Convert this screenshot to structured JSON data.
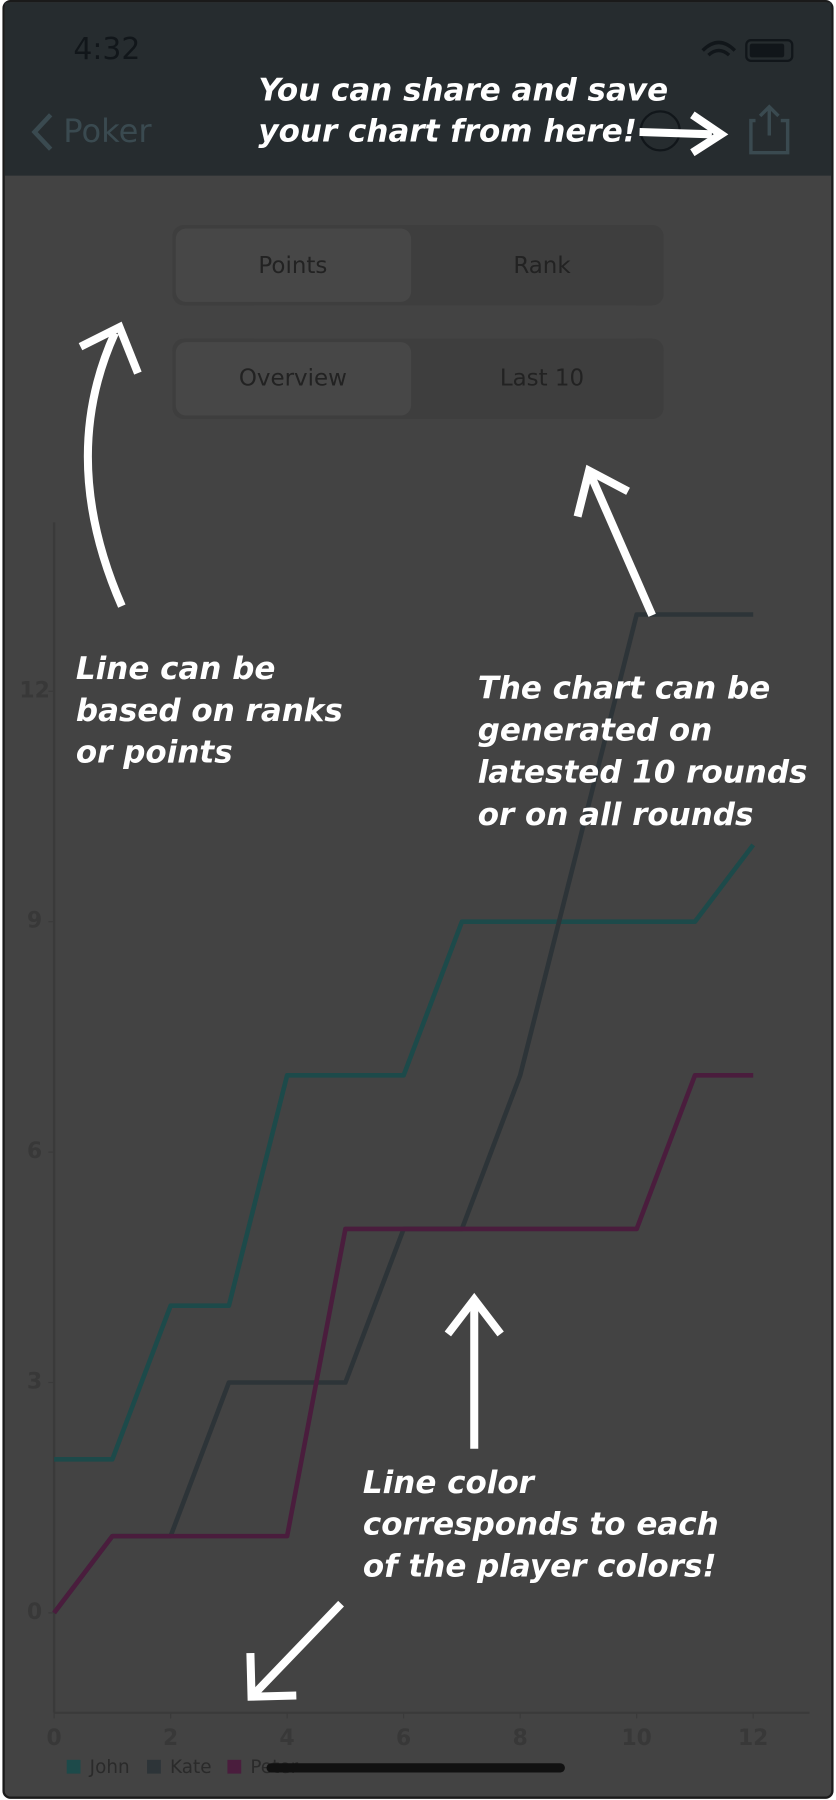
{
  "status_bar": {
    "time": "4:32"
  },
  "nav": {
    "back": "Poker"
  },
  "segments": {
    "metric": [
      "Points",
      "Rank"
    ],
    "range": [
      "Overview",
      "Last 10"
    ]
  },
  "annotations": {
    "share": [
      "You can share and save",
      "your chart from here!"
    ],
    "metric": [
      "Line can be",
      "based on ranks",
      "or points"
    ],
    "range": [
      "The chart can be",
      "generated on",
      "latested 10 rounds",
      "or on all rounds"
    ],
    "color": [
      "Line color",
      "corresponds to each",
      "of the player colors!"
    ]
  },
  "chart_data": {
    "type": "line",
    "x": [
      0,
      1,
      2,
      3,
      4,
      5,
      6,
      7,
      8,
      9,
      10,
      11,
      12
    ],
    "series": [
      {
        "name": "John",
        "color": "#1d4a4a",
        "values": [
          2,
          2,
          4,
          4,
          7,
          7,
          7,
          9,
          9,
          9,
          9,
          9,
          10
        ]
      },
      {
        "name": "Kate",
        "color": "#2d3438",
        "values": [
          0,
          1,
          1,
          3,
          3,
          3,
          5,
          5,
          7,
          10,
          13,
          13,
          13
        ]
      },
      {
        "name": "Peter",
        "color": "#4a1d3d",
        "values": [
          0,
          1,
          1,
          1,
          1,
          5,
          5,
          5,
          5,
          5,
          5,
          7,
          7
        ]
      }
    ],
    "xlim": [
      0,
      12
    ],
    "ylim": [
      -1.3,
      14.2
    ],
    "xticks": [
      0,
      2,
      4,
      6,
      8,
      10,
      12
    ],
    "yticks": [
      0,
      3,
      6,
      9,
      12
    ],
    "legend": "bottom-left"
  }
}
